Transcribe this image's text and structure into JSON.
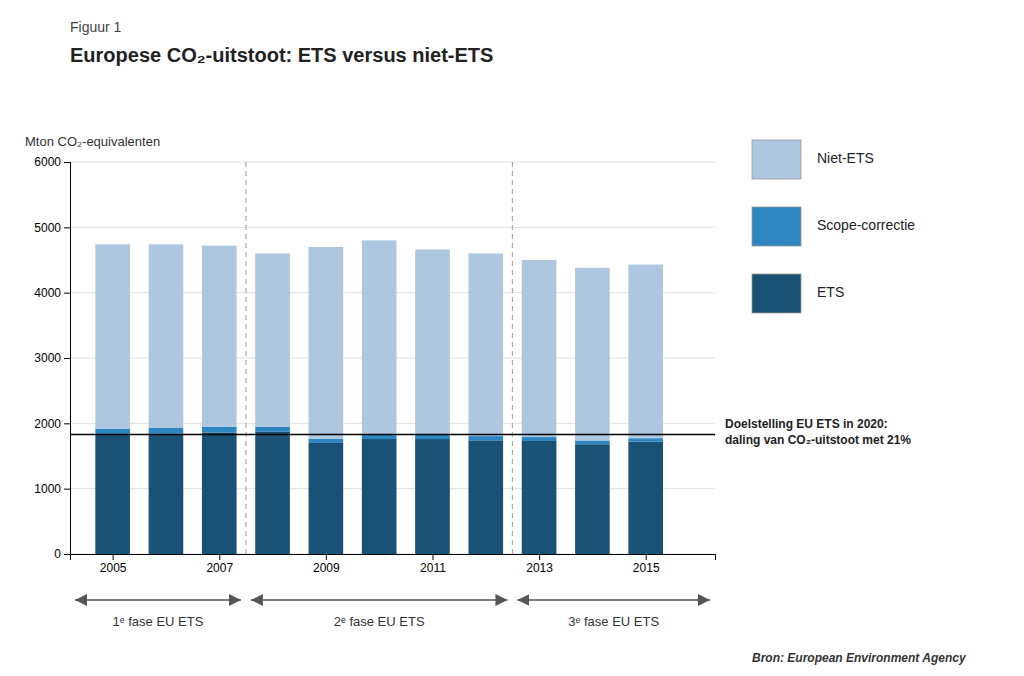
{
  "chart_data": {
    "type": "bar",
    "stacked": true,
    "subtitle": "Figuur 1",
    "title": "Europese CO₂-uitstoot: ETS versus niet-ETS",
    "ylabel": "Mton CO₂-equivalenten",
    "x": [
      2005,
      2006,
      2007,
      2008,
      2009,
      2010,
      2011,
      2012,
      2013,
      2014,
      2015
    ],
    "xlim": [
      2004.2,
      2016.3
    ],
    "xticks": [
      2005,
      2007,
      2009,
      2011,
      2013,
      2015
    ],
    "ylim": [
      0,
      6000
    ],
    "yticks": [
      0,
      1000,
      2000,
      3000,
      4000,
      5000,
      6000
    ],
    "grid": true,
    "legend": "right",
    "series": [
      {
        "name": "ETS",
        "color": "#1a5276",
        "values": [
          1830,
          1840,
          1860,
          1870,
          1700,
          1760,
          1760,
          1740,
          1730,
          1680,
          1720
        ]
      },
      {
        "name": "Scope-correctie",
        "color": "#2e86c1",
        "values": [
          90,
          90,
          85,
          75,
          65,
          75,
          75,
          65,
          60,
          58,
          52
        ]
      },
      {
        "name": "Niet-ETS",
        "color": "#aec6e0",
        "values": [
          2820,
          2810,
          2775,
          2655,
          2935,
          2965,
          2825,
          2795,
          2710,
          2642,
          2658
        ]
      }
    ],
    "target": {
      "value": 1830,
      "label_lines": [
        "Doelstelling EU ETS in 2020:",
        "daling van CO₂-uitstoot met 21%"
      ]
    },
    "phase_dividers": [
      2007.5,
      2012.5
    ],
    "phases": [
      "1ᵉ fase EU ETS",
      "2ᵉ fase EU ETS",
      "3ᵉ fase EU ETS"
    ],
    "source": "Bron: European Environment Agency"
  }
}
